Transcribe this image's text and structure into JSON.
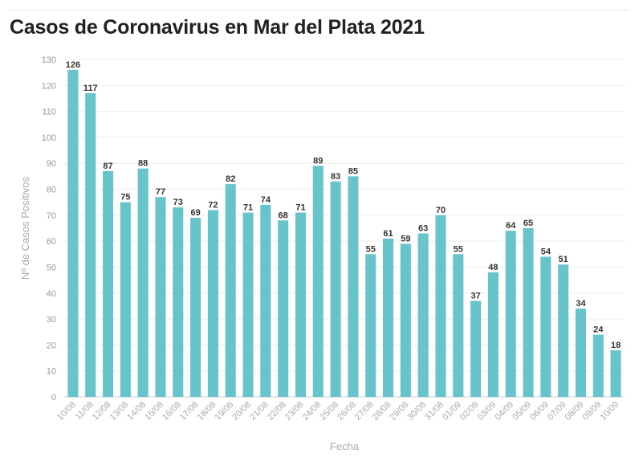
{
  "page": {
    "title": "Casos de Coronavirus en Mar del Plata 2021"
  },
  "chart_data": {
    "type": "bar",
    "title": "Casos de Coronavirus en Mar del Plata 2021",
    "xlabel": "Fecha",
    "ylabel": "Nº de Casos Positivos",
    "ylim": [
      0,
      130
    ],
    "yticks": [
      0,
      10,
      20,
      30,
      40,
      50,
      60,
      70,
      80,
      90,
      100,
      110,
      120,
      130
    ],
    "grid": true,
    "bar_color": "#68c4cb",
    "categories": [
      "10/08",
      "11/08",
      "12/08",
      "13/08",
      "14/08",
      "15/08",
      "16/08",
      "17/08",
      "18/08",
      "19/08",
      "20/08",
      "21/08",
      "22/08",
      "23/08",
      "24/08",
      "25/08",
      "26/08",
      "27/08",
      "28/08",
      "29/08",
      "30/08",
      "31/08",
      "01/09",
      "02/09",
      "03/09",
      "04/09",
      "05/09",
      "06/09",
      "07/09",
      "08/09",
      "09/09",
      "10/09"
    ],
    "values": [
      126,
      117,
      87,
      75,
      88,
      77,
      73,
      69,
      72,
      82,
      71,
      74,
      68,
      71,
      89,
      83,
      85,
      55,
      61,
      59,
      63,
      70,
      55,
      37,
      48,
      64,
      65,
      54,
      51,
      34,
      24,
      18
    ]
  }
}
